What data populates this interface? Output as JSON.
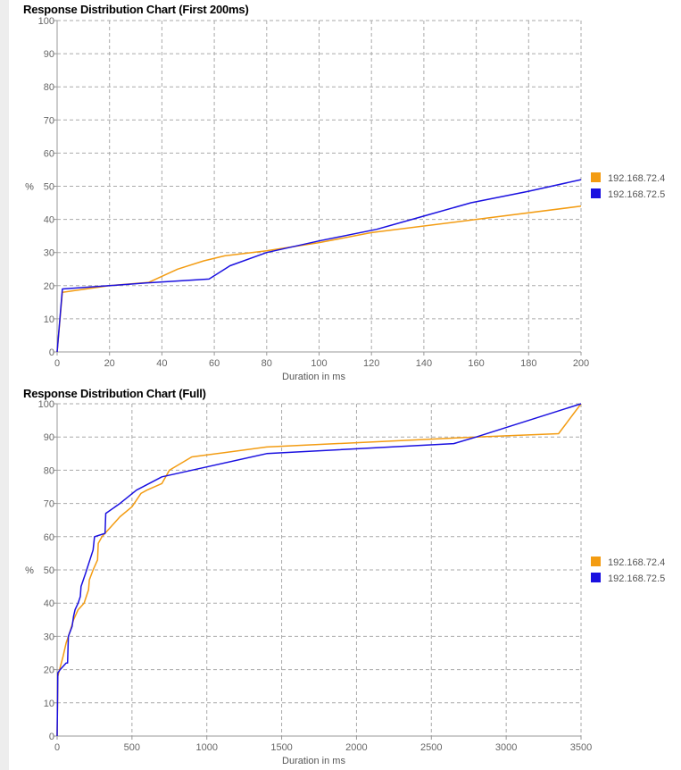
{
  "chart_data": [
    {
      "type": "line",
      "title": "Response Distribution Chart (First 200ms)",
      "xlabel": "Duration in ms",
      "ylabel": "%",
      "xlim": [
        0,
        200
      ],
      "ylim": [
        0,
        100
      ],
      "xticks": [
        "0",
        "20",
        "40",
        "60",
        "80",
        "100",
        "120",
        "140",
        "160",
        "180",
        "200"
      ],
      "yticks": [
        "0",
        "10",
        "20",
        "30",
        "40",
        "50",
        "60",
        "70",
        "80",
        "90",
        "100"
      ],
      "grid": true,
      "legend_position": "right",
      "series": [
        {
          "name": "192.168.72.4",
          "color": "#f39c12",
          "points": [
            [
              0,
              0
            ],
            [
              2,
              18
            ],
            [
              20,
              20
            ],
            [
              35,
              21
            ],
            [
              46,
              25
            ],
            [
              56,
              27.5
            ],
            [
              64,
              29
            ],
            [
              80,
              30.5
            ],
            [
              100,
              33
            ],
            [
              120,
              36
            ],
            [
              160,
              40
            ],
            [
              200,
              44
            ]
          ]
        },
        {
          "name": "192.168.72.5",
          "color": "#1a10e0",
          "points": [
            [
              0,
              0
            ],
            [
              2,
              19
            ],
            [
              20,
              20
            ],
            [
              34,
              20.8
            ],
            [
              58,
              22
            ],
            [
              66,
              26
            ],
            [
              80,
              30
            ],
            [
              100,
              33.5
            ],
            [
              122,
              37
            ],
            [
              140,
              41
            ],
            [
              158,
              45
            ],
            [
              180,
              48.5
            ],
            [
              200,
              52
            ]
          ]
        }
      ]
    },
    {
      "type": "line",
      "title": "Response Distribution Chart (Full)",
      "xlabel": "Duration in ms",
      "ylabel": "%",
      "xlim": [
        0,
        3500
      ],
      "ylim": [
        0,
        100
      ],
      "xticks": [
        "0",
        "500",
        "1000",
        "1500",
        "2000",
        "2500",
        "3000",
        "3500"
      ],
      "yticks": [
        "0",
        "10",
        "20",
        "30",
        "40",
        "50",
        "60",
        "70",
        "80",
        "90",
        "100"
      ],
      "grid": true,
      "legend_position": "right",
      "series": [
        {
          "name": "192.168.72.4",
          "color": "#f39c12",
          "points": [
            [
              0,
              0
            ],
            [
              5,
              18
            ],
            [
              40,
              24
            ],
            [
              60,
              28
            ],
            [
              90,
              32
            ],
            [
              110,
              35
            ],
            [
              140,
              38
            ],
            [
              180,
              40
            ],
            [
              210,
              44
            ],
            [
              215,
              47
            ],
            [
              240,
              50
            ],
            [
              270,
              53
            ],
            [
              275,
              58
            ],
            [
              300,
              60
            ],
            [
              360,
              63
            ],
            [
              420,
              66
            ],
            [
              500,
              69
            ],
            [
              560,
              73
            ],
            [
              600,
              74
            ],
            [
              700,
              76
            ],
            [
              750,
              80
            ],
            [
              900,
              84
            ],
            [
              1400,
              87
            ],
            [
              2800,
              90
            ],
            [
              3350,
              91
            ],
            [
              3500,
              100
            ]
          ]
        },
        {
          "name": "192.168.72.5",
          "color": "#1a10e0",
          "points": [
            [
              0,
              0
            ],
            [
              5,
              19
            ],
            [
              20,
              20
            ],
            [
              60,
              22
            ],
            [
              70,
              22
            ],
            [
              75,
              30
            ],
            [
              100,
              33
            ],
            [
              110,
              36
            ],
            [
              120,
              38
            ],
            [
              140,
              40
            ],
            [
              155,
              42
            ],
            [
              160,
              45
            ],
            [
              190,
              49
            ],
            [
              240,
              56
            ],
            [
              250,
              60
            ],
            [
              320,
              61
            ],
            [
              325,
              67
            ],
            [
              420,
              70
            ],
            [
              530,
              74
            ],
            [
              700,
              78
            ],
            [
              1000,
              81
            ],
            [
              1400,
              85
            ],
            [
              2650,
              88
            ],
            [
              2800,
              90
            ],
            [
              3500,
              100
            ]
          ]
        }
      ]
    }
  ]
}
